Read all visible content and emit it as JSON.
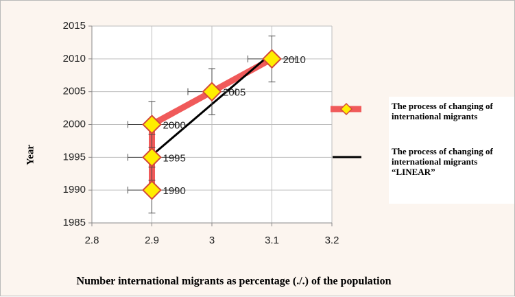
{
  "chart_data": {
    "type": "line",
    "xlabel": "Number international migrants as percentage (./.) of the population",
    "ylabel": "Year",
    "xlim": [
      2.8,
      3.2
    ],
    "xticks": [
      2.8,
      2.9,
      3,
      3.1,
      3.2
    ],
    "ylim": [
      1985,
      2015
    ],
    "yticks": [
      1985,
      1990,
      1995,
      2000,
      2005,
      2010,
      2015
    ],
    "grid": true,
    "series": [
      {
        "name": "The process of changing of international migrants",
        "color": "#f05a5a",
        "marker_color": "#ffee00",
        "x": [
          2.9,
          2.9,
          2.9,
          3.0,
          3.1
        ],
        "values": [
          1990,
          1995,
          2000,
          2005,
          2010
        ],
        "xerr": [
          0.04,
          0.04,
          0.04,
          0.04,
          0.04
        ],
        "yerr": [
          3.5,
          3.5,
          3.5,
          3.5,
          3.5
        ]
      },
      {
        "name": "The process of changing of international migrants “LINEAR”",
        "color": "#000000",
        "x": [
          2.9,
          3.1
        ],
        "values": [
          1995.3,
          2010.9
        ]
      }
    ]
  }
}
